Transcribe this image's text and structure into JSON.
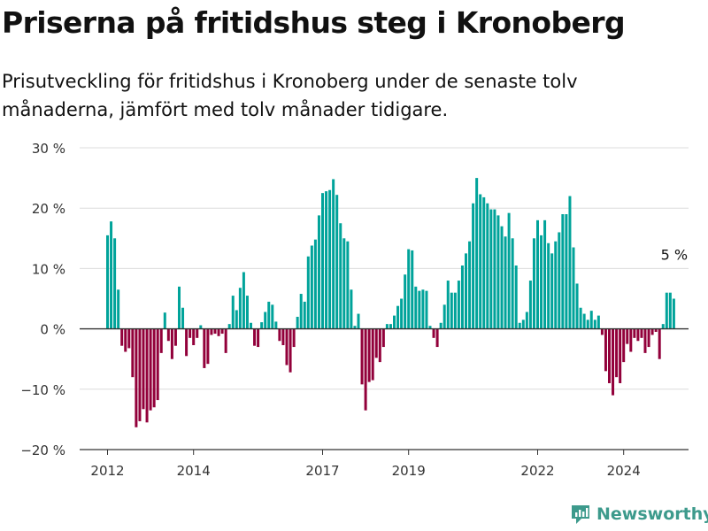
{
  "title": "Priserna på fritidshus steg i Kronoberg",
  "subtitle": "Prisutveckling för fritidshus i Kronoberg under de senaste tolv månaderna, jämfört med tolv månader tidigare.",
  "brand": {
    "name": "Newsworthy",
    "color": "#3d9a8c"
  },
  "chart_data": {
    "type": "bar",
    "ylim": [
      -20,
      30
    ],
    "y_ticks": [
      -20,
      -10,
      0,
      10,
      20,
      30
    ],
    "y_tick_labels": [
      "−20 %",
      "−10 %",
      "0 %",
      "10 %",
      "20 %",
      "30 %"
    ],
    "x_ticks": [
      "2012",
      "2014",
      "2017",
      "2019",
      "2022",
      "2024"
    ],
    "x_start": "2012-01",
    "colors": {
      "positive": "#00a39a",
      "negative": "#92003a"
    },
    "last_value_label": "5 %",
    "values": [
      15.5,
      17.8,
      15,
      6.5,
      -2.8,
      -3.8,
      -3.2,
      -8,
      -16.3,
      -15.3,
      -13.3,
      -15.5,
      -13.5,
      -13,
      -11.8,
      -4,
      2.7,
      -2,
      -5,
      -2.8,
      7,
      3.5,
      -4.5,
      -1.5,
      -2.7,
      -1.5,
      0.6,
      -6.5,
      -5.8,
      -1,
      -0.8,
      -1.2,
      -0.8,
      -4,
      0.8,
      5.5,
      3.1,
      6.8,
      9.4,
      5.5,
      1,
      -2.8,
      -3,
      1.1,
      2.8,
      4.5,
      4,
      1.2,
      -2,
      -2.7,
      -6,
      -7.2,
      -3,
      2,
      5.8,
      4.5,
      12,
      13.8,
      14.8,
      18.8,
      22.5,
      22.8,
      23,
      24.8,
      22.2,
      17.5,
      15,
      14.5,
      6.5,
      0.5,
      2.5,
      -9.2,
      -13.5,
      -8.8,
      -8.5,
      -4.8,
      -5.5,
      -3,
      0.8,
      0.8,
      2.2,
      3.8,
      5,
      9,
      13.2,
      13,
      7,
      6.3,
      6.5,
      6.3,
      0.5,
      -1.5,
      -3,
      1,
      4,
      8,
      6,
      6,
      8,
      10.5,
      12.5,
      14.5,
      20.8,
      25,
      22.3,
      21.8,
      20.8,
      19.8,
      19.8,
      18.8,
      17,
      15.3,
      19.2,
      15,
      10.5,
      1,
      1.5,
      2.8,
      8,
      15,
      18,
      15.5,
      18,
      14.2,
      12.5,
      14.5,
      16,
      19,
      19,
      22,
      13.5,
      7.5,
      3.5,
      2.5,
      1.5,
      3,
      1.5,
      2.2,
      -1,
      -7,
      -9,
      -11,
      -8,
      -9,
      -5.5,
      -2.5,
      -3.8,
      -1.5,
      -2,
      -1.5,
      -4,
      -3,
      -1,
      -0.5,
      -5,
      0.8,
      6,
      6,
      5
    ]
  }
}
